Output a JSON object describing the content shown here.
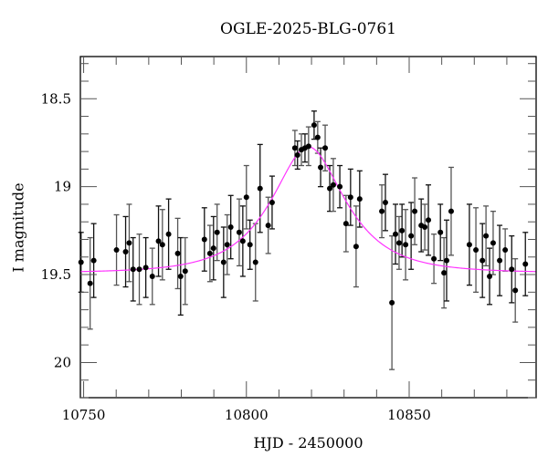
{
  "chart_data": {
    "type": "scatter",
    "title": "OGLE-2025-BLG-0761",
    "xlabel": "HJD - 2450000",
    "ylabel": "I magnitude",
    "xlim": [
      10749,
      10889
    ],
    "ylim": [
      20.2,
      18.26
    ],
    "y_inverted": true,
    "grid": false,
    "legend": null,
    "x_ticks": [
      10750,
      10800,
      10850
    ],
    "x_minor_step": 10,
    "y_ticks": [
      18.5,
      19,
      19.5,
      20
    ],
    "y_tick_labels": [
      "18.5",
      "19",
      "19.5",
      "20"
    ],
    "y_minor_step": 0.1,
    "colors": {
      "points": "#000000",
      "errorbars": "#555555",
      "model": "#ff33ff",
      "axes": "#000000"
    },
    "series": [
      {
        "name": "observations",
        "kind": "scatter_with_errorbars",
        "x": [
          10749.2,
          10752.0,
          10753.1,
          10760.1,
          10762.9,
          10764.0,
          10765.2,
          10767.1,
          10769.1,
          10771.1,
          10773.0,
          10774.2,
          10776.1,
          10778.9,
          10779.8,
          10781.2,
          10787.1,
          10788.8,
          10789.9,
          10791.0,
          10793.0,
          10794.1,
          10795.2,
          10797.8,
          10798.9,
          10800.0,
          10801.1,
          10802.8,
          10804.2,
          10806.7,
          10807.9,
          10814.9,
          10815.7,
          10816.9,
          10818.0,
          10819.1,
          10820.8,
          10821.9,
          10822.8,
          10824.2,
          10825.6,
          10826.7,
          10828.7,
          10830.6,
          10832.0,
          10833.7,
          10834.8,
          10841.6,
          10842.7,
          10844.7,
          10845.8,
          10846.9,
          10847.8,
          10848.9,
          10850.6,
          10851.7,
          10853.7,
          10854.8,
          10855.9,
          10857.6,
          10859.6,
          10860.7,
          10861.5,
          10862.9,
          10868.5,
          10870.5,
          10872.5,
          10873.6,
          10874.7,
          10875.8,
          10877.8,
          10879.5,
          10881.5,
          10882.6,
          10885.7
        ],
        "y": [
          19.43,
          19.55,
          19.42,
          19.36,
          19.37,
          19.32,
          19.47,
          19.47,
          19.46,
          19.51,
          19.31,
          19.33,
          19.27,
          19.38,
          19.51,
          19.48,
          19.3,
          19.38,
          19.35,
          19.26,
          19.43,
          19.33,
          19.23,
          19.26,
          19.31,
          19.06,
          19.33,
          19.43,
          19.01,
          19.22,
          19.09,
          18.78,
          18.82,
          18.79,
          18.78,
          18.77,
          18.65,
          18.72,
          18.89,
          18.78,
          19.01,
          18.99,
          19.0,
          19.21,
          19.06,
          19.34,
          19.07,
          19.14,
          19.09,
          19.66,
          19.27,
          19.32,
          19.25,
          19.33,
          19.28,
          19.14,
          19.22,
          19.23,
          19.19,
          19.41,
          19.26,
          19.49,
          19.42,
          19.14,
          19.33,
          19.36,
          19.42,
          19.28,
          19.51,
          19.32,
          19.42,
          19.36,
          19.47,
          19.59,
          19.44
        ],
        "yerr": [
          0.17,
          0.26,
          0.21,
          0.2,
          0.2,
          0.22,
          0.18,
          0.2,
          0.17,
          0.16,
          0.2,
          0.2,
          0.2,
          0.2,
          0.22,
          0.19,
          0.18,
          0.16,
          0.18,
          0.16,
          0.2,
          0.17,
          0.18,
          0.19,
          0.2,
          0.18,
          0.14,
          0.22,
          0.25,
          0.16,
          0.15,
          0.1,
          0.08,
          0.09,
          0.08,
          0.11,
          0.08,
          0.09,
          0.11,
          0.13,
          0.13,
          0.15,
          0.12,
          0.16,
          0.16,
          0.23,
          0.16,
          0.15,
          0.16,
          0.38,
          0.17,
          0.15,
          0.15,
          0.2,
          0.19,
          0.19,
          0.15,
          0.13,
          0.2,
          0.14,
          0.16,
          0.2,
          0.23,
          0.25,
          0.23,
          0.24,
          0.21,
          0.17,
          0.16,
          0.18,
          0.2,
          0.12,
          0.19,
          0.18,
          0.18
        ]
      },
      {
        "name": "model",
        "kind": "line",
        "model": "paczynski",
        "params": {
          "t0": 10819.0,
          "tE": 18.0,
          "u0": 0.58,
          "I_base": 19.49
        }
      }
    ]
  }
}
